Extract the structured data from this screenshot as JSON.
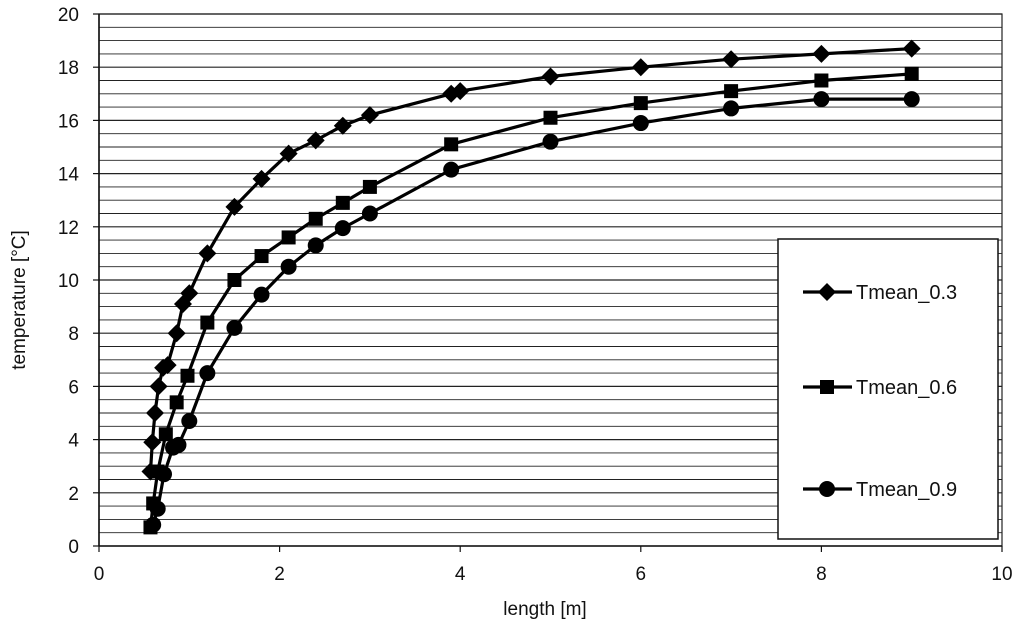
{
  "chart_data": {
    "type": "line",
    "title": "",
    "xlabel": "length [m]",
    "ylabel": "temperature [°C]",
    "xlim": [
      0,
      10
    ],
    "ylim": [
      0,
      20
    ],
    "x_ticks": [
      0,
      2,
      4,
      6,
      8,
      10
    ],
    "y_ticks": [
      0,
      2,
      4,
      6,
      8,
      10,
      12,
      14,
      16,
      18,
      20
    ],
    "x_tick_labels": [
      "0",
      "2",
      "4",
      "6",
      "8",
      "10"
    ],
    "y_tick_labels": [
      "0",
      "2",
      "4",
      "6",
      "8",
      "10",
      "12",
      "14",
      "16",
      "18",
      "20"
    ],
    "grid": "horizontal",
    "minor_grid_step": 0.5,
    "legend_position": "right",
    "line_color": "#000000",
    "series": [
      {
        "name": "Tmean_0.3",
        "marker": "diamond",
        "x": [
          0.57,
          0.59,
          0.62,
          0.66,
          0.71,
          0.76,
          0.86,
          0.93,
          1.0,
          1.2,
          1.5,
          1.8,
          2.1,
          2.4,
          2.7,
          3.0,
          3.9,
          4.0,
          5.0,
          6.0,
          7.0,
          8.0,
          9.0
        ],
        "y": [
          2.8,
          3.9,
          5.0,
          6.0,
          6.7,
          6.8,
          8.0,
          9.1,
          9.5,
          11.0,
          12.75,
          13.8,
          14.75,
          15.25,
          15.8,
          16.2,
          17.0,
          17.1,
          17.65,
          18.0,
          18.3,
          18.5,
          18.7
        ]
      },
      {
        "name": "Tmean_0.6",
        "marker": "square",
        "x": [
          0.57,
          0.6,
          0.65,
          0.74,
          0.86,
          0.98,
          1.2,
          1.5,
          1.8,
          2.1,
          2.4,
          2.7,
          3.0,
          3.9,
          5.0,
          6.0,
          7.0,
          8.0,
          9.0
        ],
        "y": [
          0.7,
          1.6,
          2.8,
          4.2,
          5.4,
          6.4,
          8.4,
          10.0,
          10.9,
          11.6,
          12.3,
          12.9,
          13.5,
          15.1,
          16.1,
          16.65,
          17.1,
          17.5,
          17.75
        ]
      },
      {
        "name": "Tmean_0.9",
        "marker": "circle",
        "x": [
          0.6,
          0.65,
          0.72,
          0.82,
          0.88,
          1.0,
          1.2,
          1.5,
          1.8,
          2.1,
          2.4,
          2.7,
          3.0,
          3.9,
          5.0,
          6.0,
          7.0,
          8.0,
          9.0
        ],
        "y": [
          0.8,
          1.4,
          2.7,
          3.7,
          3.8,
          4.7,
          6.5,
          8.2,
          9.45,
          10.5,
          11.3,
          11.95,
          12.5,
          14.15,
          15.2,
          15.9,
          16.45,
          16.8,
          16.8
        ]
      }
    ]
  }
}
